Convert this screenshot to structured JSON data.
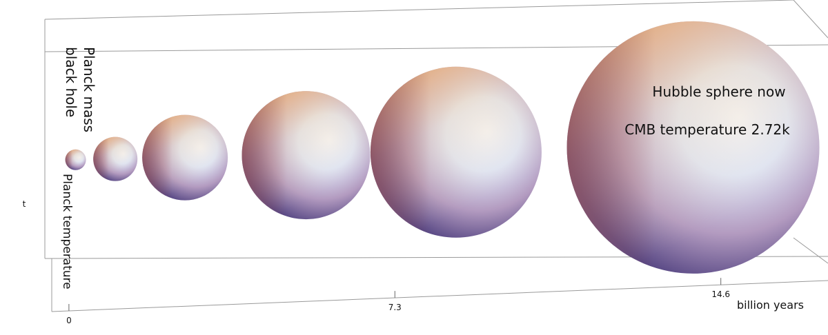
{
  "chart_data": {
    "type": "bubble",
    "ylabel": "t",
    "xlabel": "billion years",
    "x": [
      0.15,
      1.04,
      2.6,
      5.31,
      8.67,
      13.98
    ],
    "sizes": [
      15,
      32,
      62,
      93,
      124,
      183
    ],
    "xlim": [
      -0.4,
      17
    ],
    "xticks": [
      0,
      7.3,
      14.6
    ],
    "annotations": [
      "Planck mass",
      "black hole",
      "Planck temperature",
      "Hubble sphere now",
      "CMB temperature 2.72k"
    ]
  }
}
